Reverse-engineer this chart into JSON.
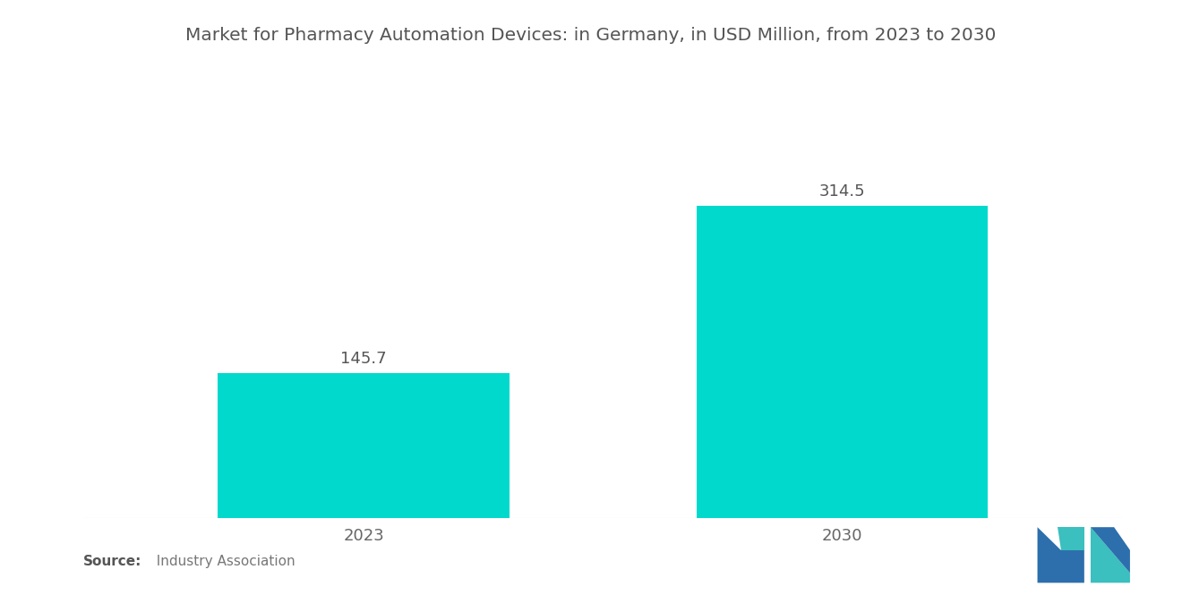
{
  "title": "Market for Pharmacy Automation Devices: in Germany, in USD Million, from 2023 to 2030",
  "categories": [
    "2023",
    "2030"
  ],
  "values": [
    145.7,
    314.5
  ],
  "bar_color": "#00D9CC",
  "bar_width": 0.28,
  "value_labels": [
    "145.7",
    "314.5"
  ],
  "background_color": "#ffffff",
  "title_fontsize": 14.5,
  "label_fontsize": 13,
  "value_fontsize": 13,
  "source_bold": "Source:",
  "source_rest": "  Industry Association",
  "ylim": [
    0,
    390
  ],
  "xlim": [
    0.0,
    1.0
  ],
  "bar_positions": [
    0.27,
    0.73
  ],
  "logo_blue": "#2C6FAC",
  "logo_teal": "#3BBFBF"
}
